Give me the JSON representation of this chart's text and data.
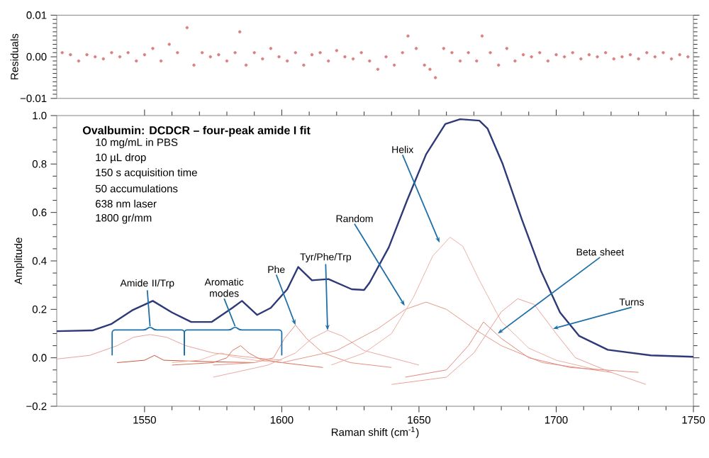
{
  "chart_data": [
    {
      "type": "scatter",
      "ylabel": "Residuals",
      "tick_labels": "y",
      "xlim": [
        1518,
        1750
      ],
      "ylim": [
        -0.01,
        0.01
      ],
      "yticks": [
        {
          "value": -0.01,
          "label": "−0.01"
        },
        {
          "value": 0,
          "label": "0.00"
        },
        {
          "value": 0.01,
          "label": "0.01"
        }
      ],
      "series": [
        {
          "color": "#d98080",
          "x": [
            1520,
            1523,
            1526,
            1529,
            1532,
            1535,
            1538,
            1541,
            1544,
            1547,
            1550,
            1553,
            1556,
            1559,
            1562,
            1565.5,
            1568,
            1571,
            1574,
            1577,
            1580,
            1583,
            1584.7,
            1587,
            1590,
            1593,
            1596,
            1599,
            1602,
            1605,
            1608,
            1611,
            1614,
            1617,
            1620,
            1623,
            1626,
            1629,
            1632,
            1635,
            1638,
            1641,
            1644,
            1646,
            1649,
            1652,
            1654,
            1656,
            1659,
            1662,
            1665,
            1668,
            1671,
            1673,
            1676,
            1679,
            1682,
            1685,
            1688,
            1691,
            1694,
            1697,
            1700,
            1703,
            1706,
            1709,
            1712,
            1715,
            1718,
            1721,
            1724,
            1727,
            1730,
            1733,
            1736,
            1739,
            1742,
            1745,
            1748
          ],
          "values": [
            0.001,
            0.0005,
            -0.001,
            0.0005,
            0,
            -0.0005,
            0.001,
            0,
            0.001,
            -0.001,
            0.0005,
            0.002,
            -0.001,
            0.003,
            0.001,
            0.007,
            -0.002,
            0.001,
            0,
            0.0005,
            -0.001,
            0.001,
            0.006,
            -0.002,
            0.001,
            -0.0005,
            0.002,
            0,
            -0.001,
            0.001,
            -0.002,
            0.0005,
            0.001,
            -0.001,
            0.0015,
            0,
            -0.0005,
            0.001,
            -0.001,
            -0.003,
            0,
            -0.002,
            0.001,
            0.005,
            0.002,
            -0.002,
            -0.003,
            -0.005,
            0.002,
            0.001,
            -0.001,
            0.001,
            -0.001,
            0.005,
            0.001,
            -0.002,
            0.002,
            -0.001,
            0.0005,
            0,
            0.001,
            -0.001,
            0.0005,
            0,
            0.001,
            -0.0005,
            0.0005,
            0,
            0.001,
            -0.0005,
            0,
            0.0005,
            -0.0005,
            0.001,
            0,
            0.001,
            -0.0005,
            0.0005,
            0
          ]
        }
      ]
    },
    {
      "type": "line",
      "title": "Ovalbumin: DCDCR – four-peak amide I fit",
      "xlabel": "Raman shift (cm$^{-1}$)",
      "ylabel": "Amplitude",
      "xlim": [
        1518,
        1750
      ],
      "ylim": [
        -0.2,
        1.0
      ],
      "xticks": [
        1550,
        1600,
        1650,
        1700,
        1750
      ],
      "yticks": [
        {
          "value": -0.2,
          "label": "−0.2"
        },
        {
          "value": 0,
          "label": "0.0"
        },
        {
          "value": 0.2,
          "label": "0.2"
        },
        {
          "value": 0.4,
          "label": "0.4"
        },
        {
          "value": 0.6,
          "label": "0.6"
        },
        {
          "value": 0.8,
          "label": "0.8"
        },
        {
          "value": 1.0,
          "label": "1.0"
        }
      ],
      "series": [
        {
          "color": "#e8a29a",
          "x": [
            1518,
            1530,
            1540,
            1546,
            1552,
            1558,
            1565,
            1575,
            1590,
            1600
          ],
          "values": [
            -0.005,
            0.01,
            0.05,
            0.085,
            0.096,
            0.085,
            0.05,
            0.02,
            0.0,
            -0.01
          ]
        },
        {
          "color": "#c8583c",
          "x": [
            1540,
            1550,
            1553.6,
            1557,
            1570,
            1590
          ],
          "values": [
            -0.02,
            -0.01,
            0.01,
            -0.01,
            -0.015,
            -0.02
          ]
        },
        {
          "color": "#f0b8a8",
          "x": [
            1560,
            1570,
            1575,
            1578,
            1582,
            1590,
            1600
          ],
          "values": [
            -0.02,
            -0.01,
            0.01,
            0.02,
            0.005,
            -0.01,
            -0.02
          ]
        },
        {
          "color": "#d9745a",
          "x": [
            1560,
            1575,
            1580,
            1582,
            1585,
            1588,
            1592,
            1600,
            1615
          ],
          "values": [
            -0.03,
            -0.02,
            0.0,
            0.03,
            0.05,
            0.02,
            -0.005,
            -0.02,
            -0.04
          ]
        },
        {
          "color": "#e89080",
          "x": [
            1575,
            1590,
            1597,
            1601,
            1605,
            1609,
            1615,
            1625,
            1640
          ],
          "values": [
            -0.03,
            -0.02,
            0.0,
            0.08,
            0.135,
            0.08,
            0.02,
            -0.02,
            -0.04
          ]
        },
        {
          "color": "#eaaaa0",
          "x": [
            1575,
            1595,
            1605,
            1611,
            1616.7,
            1622,
            1630,
            1640,
            1650
          ],
          "values": [
            -0.08,
            -0.03,
            0.02,
            0.08,
            0.113,
            0.09,
            0.03,
            0.0,
            -0.03
          ]
        },
        {
          "color": "#e5988c",
          "x": [
            1600,
            1620,
            1635,
            1645,
            1652.6,
            1660,
            1670,
            1680,
            1695,
            1720
          ],
          "values": [
            -0.02,
            0.03,
            0.12,
            0.2,
            0.23,
            0.2,
            0.12,
            0.05,
            -0.02,
            -0.06
          ]
        },
        {
          "color": "#ecb0a6",
          "x": [
            1618,
            1630,
            1640,
            1648,
            1655,
            1661.3,
            1666,
            1672,
            1680,
            1690,
            1700,
            1715
          ],
          "values": [
            -0.03,
            0.02,
            0.1,
            0.25,
            0.42,
            0.498,
            0.46,
            0.32,
            0.15,
            0.04,
            -0.01,
            -0.05
          ]
        },
        {
          "color": "#df8a7c",
          "x": [
            1645,
            1660,
            1668,
            1673.5,
            1680,
            1690,
            1705,
            1730
          ],
          "values": [
            -0.08,
            -0.05,
            0.05,
            0.148,
            0.08,
            0.0,
            -0.04,
            -0.06
          ]
        },
        {
          "color": "#e8a29a",
          "x": [
            1640,
            1660,
            1670,
            1680,
            1686,
            1692,
            1700,
            1707,
            1720,
            1732.7
          ],
          "values": [
            -0.11,
            -0.08,
            0.02,
            0.19,
            0.244,
            0.22,
            0.1,
            0.0,
            -0.06,
            -0.11
          ]
        },
        {
          "color": "#2e3a78",
          "x": [
            1518,
            1531,
            1538,
            1545.5,
            1553,
            1560,
            1567,
            1574.5,
            1582,
            1585.5,
            1591,
            1596,
            1602,
            1606,
            1611,
            1617,
            1625.5,
            1630,
            1632,
            1639,
            1645.6,
            1652.6,
            1659.6,
            1665,
            1672,
            1675,
            1680.5,
            1687.5,
            1694.4,
            1701.4,
            1708.4,
            1718.8,
            1734.5,
            1750
          ],
          "values": [
            0.11,
            0.113,
            0.14,
            0.196,
            0.235,
            0.187,
            0.148,
            0.148,
            0.206,
            0.235,
            0.177,
            0.206,
            0.283,
            0.375,
            0.32,
            0.325,
            0.283,
            0.28,
            0.31,
            0.456,
            0.648,
            0.84,
            0.965,
            0.985,
            0.979,
            0.946,
            0.8,
            0.571,
            0.36,
            0.187,
            0.09,
            0.033,
            0.01,
            0.004
          ]
        }
      ],
      "annotations": [
        "10 mg/mL in PBS",
        "10 µL drop",
        "150 s acquisition time",
        "50 accumulations",
        "638 nm laser",
        "1800 gr/mm",
        {
          "text": "Amide II/Trp",
          "x": 1552,
          "y": 0.235
        },
        {
          "text": "Aromatic modes",
          "x": 1583,
          "y": 0.225
        },
        {
          "text": "Phe",
          "x": 1605,
          "y": 0.135
        },
        {
          "text": "Tyr/Phe/Trp",
          "x": 1616.7,
          "y": 0.113
        },
        {
          "text": "Random",
          "x": 1644.8,
          "y": 0.215
        },
        {
          "text": "Helix",
          "x": 1657.5,
          "y": 0.475
        },
        {
          "text": "Beta sheet",
          "x": 1678.7,
          "y": 0.1
        },
        {
          "text": "Turns",
          "x": 1698.8,
          "y": 0.12
        }
      ]
    }
  ]
}
